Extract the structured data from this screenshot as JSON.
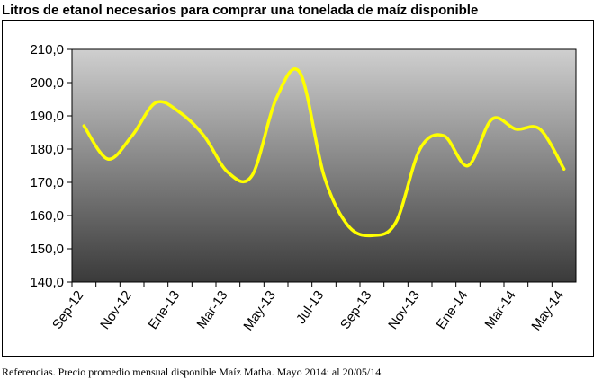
{
  "chart_data": {
    "type": "line",
    "title": "Litros de etanol necesarios para comprar una tonelada de maíz disponible",
    "footnote": "Referencias. Precio promedio mensual disponible Maíz Matba. Mayo 2014: al 20/05/14",
    "categories": [
      "Sep-12",
      null,
      "Nov-12",
      null,
      "Ene-13",
      null,
      "Mar-13",
      null,
      "May-13",
      null,
      "Jul-13",
      null,
      "Sep-13",
      null,
      "Nov-13",
      null,
      "Ene-14",
      null,
      "Mar-14",
      null,
      "May-14"
    ],
    "series": [
      {
        "name": "Litros",
        "color": "#ffff00",
        "values": [
          187,
          177,
          184,
          194,
          191,
          184,
          173,
          172,
          195,
          203,
          172,
          157,
          154,
          158,
          180,
          184,
          175,
          189,
          186,
          186,
          174
        ]
      }
    ],
    "ylim": [
      140,
      210
    ],
    "yticks": [
      {
        "value": 140,
        "label": "140,0"
      },
      {
        "value": 150,
        "label": "150,0"
      },
      {
        "value": 160,
        "label": "160,0"
      },
      {
        "value": 170,
        "label": "170,0"
      },
      {
        "value": 180,
        "label": "180,0"
      },
      {
        "value": 190,
        "label": "190,0"
      },
      {
        "value": 200,
        "label": "200,0"
      },
      {
        "value": 210,
        "label": "210,0"
      }
    ],
    "grid": false
  }
}
